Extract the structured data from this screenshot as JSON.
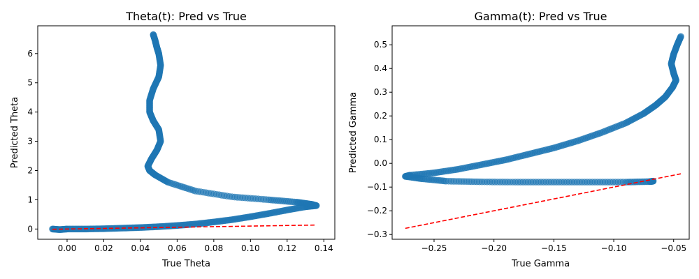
{
  "chart_data": [
    {
      "type": "scatter",
      "title": "Theta(t): Pred vs True",
      "xlabel": "True Theta",
      "ylabel": "Predicted Theta",
      "xlim": [
        -0.016,
        0.146
      ],
      "ylim": [
        -0.35,
        6.95
      ],
      "xticks": [
        0.0,
        0.02,
        0.04,
        0.06,
        0.08,
        0.1,
        0.12,
        0.14
      ],
      "xtick_labels": [
        "0.00",
        "0.02",
        "0.04",
        "0.06",
        "0.08",
        "0.10",
        "0.12",
        "0.14"
      ],
      "yticks": [
        0,
        1,
        2,
        3,
        4,
        5,
        6
      ],
      "ytick_labels": [
        "0",
        "1",
        "2",
        "3",
        "4",
        "5",
        "6"
      ],
      "grid": false,
      "marker_color": "#1f77b4",
      "reference_line": {
        "style": "dashed",
        "color": "#ff0000",
        "x": [
          -0.008,
          0.136
        ],
        "y": [
          -0.008,
          0.136
        ]
      },
      "series": [
        {
          "x": [
            -0.008,
            -0.004,
            0.0,
            0.01,
            0.02,
            0.03,
            0.04,
            0.05,
            0.06,
            0.07,
            0.08,
            0.09,
            0.1,
            0.11,
            0.12,
            0.13,
            0.136,
            0.133,
            0.125,
            0.11,
            0.09,
            0.07,
            0.055,
            0.048,
            0.045,
            0.044,
            0.046,
            0.049,
            0.051,
            0.05,
            0.047,
            0.045,
            0.045,
            0.047,
            0.05,
            0.051,
            0.05,
            0.049,
            0.048,
            0.047
          ],
          "y": [
            0.0,
            -0.02,
            0.0,
            0.0,
            0.01,
            0.03,
            0.05,
            0.08,
            0.12,
            0.17,
            0.24,
            0.32,
            0.42,
            0.53,
            0.65,
            0.76,
            0.8,
            0.85,
            0.92,
            1.0,
            1.1,
            1.3,
            1.6,
            1.85,
            2.0,
            2.15,
            2.4,
            2.7,
            3.0,
            3.4,
            3.7,
            4.0,
            4.4,
            4.8,
            5.2,
            5.6,
            6.0,
            6.2,
            6.45,
            6.65
          ]
        }
      ]
    },
    {
      "type": "scatter",
      "title": "Gamma(t): Pred vs True",
      "xlabel": "True Gamma",
      "ylabel": "Predicted Gamma",
      "xlim": [
        -0.285,
        -0.037
      ],
      "ylim": [
        -0.32,
        0.58
      ],
      "xticks": [
        -0.25,
        -0.2,
        -0.15,
        -0.1,
        -0.05
      ],
      "xtick_labels": [
        "−0.25",
        "−0.20",
        "−0.15",
        "−0.10",
        "−0.05"
      ],
      "yticks": [
        -0.3,
        -0.2,
        -0.1,
        0.0,
        0.1,
        0.2,
        0.3,
        0.4,
        0.5
      ],
      "ytick_labels": [
        "−0.3",
        "−0.2",
        "−0.1",
        "0.0",
        "0.1",
        "0.2",
        "0.3",
        "0.4",
        "0.5"
      ],
      "grid": false,
      "marker_color": "#1f77b4",
      "reference_line": {
        "style": "dashed",
        "color": "#ff0000",
        "x": [
          -0.274,
          -0.044
        ],
        "y": [
          -0.274,
          -0.044
        ]
      },
      "series": [
        {
          "x": [
            -0.067,
            -0.07,
            -0.09,
            -0.12,
            -0.15,
            -0.18,
            -0.21,
            -0.24,
            -0.26,
            -0.274,
            -0.27,
            -0.25,
            -0.23,
            -0.21,
            -0.19,
            -0.17,
            -0.15,
            -0.13,
            -0.11,
            -0.09,
            -0.075,
            -0.065,
            -0.057,
            -0.051,
            -0.048,
            -0.05,
            -0.052,
            -0.05,
            -0.047,
            -0.044
          ],
          "y": [
            -0.075,
            -0.077,
            -0.079,
            -0.079,
            -0.079,
            -0.079,
            -0.078,
            -0.075,
            -0.065,
            -0.055,
            -0.05,
            -0.04,
            -0.025,
            -0.005,
            0.015,
            0.04,
            0.065,
            0.095,
            0.13,
            0.17,
            0.21,
            0.245,
            0.28,
            0.32,
            0.35,
            0.38,
            0.42,
            0.46,
            0.5,
            0.535
          ]
        }
      ]
    }
  ]
}
